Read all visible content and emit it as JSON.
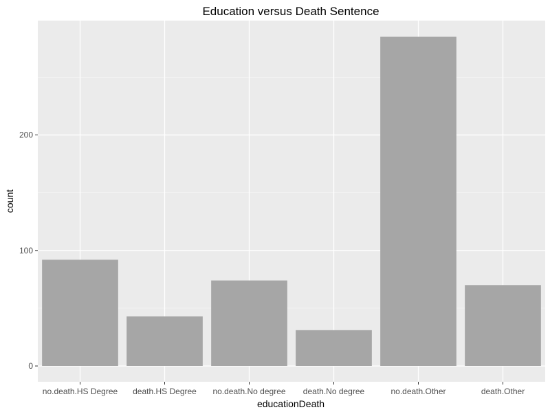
{
  "chart_data": {
    "type": "bar",
    "title": "Education versus Death Sentence",
    "xlabel": "educationDeath",
    "ylabel": "count",
    "categories": [
      "no.death.HS Degree",
      "death.HS Degree",
      "no.death.No degree",
      "death.No degree",
      "no.death.Other",
      "death.Other"
    ],
    "values": [
      92,
      43,
      74,
      31,
      285,
      70
    ],
    "y_ticks": [
      0,
      100,
      200
    ],
    "y_tick_labels": [
      "0",
      "100",
      "200"
    ],
    "ylim": [
      0,
      299
    ],
    "grid": true,
    "legend": "none",
    "colors": {
      "panel_background": "#ebebeb",
      "grid_major": "#ffffff",
      "grid_minor": "#f5f5f5",
      "bar_fill": "#a6a6a6",
      "tick_mark": "#333333"
    }
  }
}
